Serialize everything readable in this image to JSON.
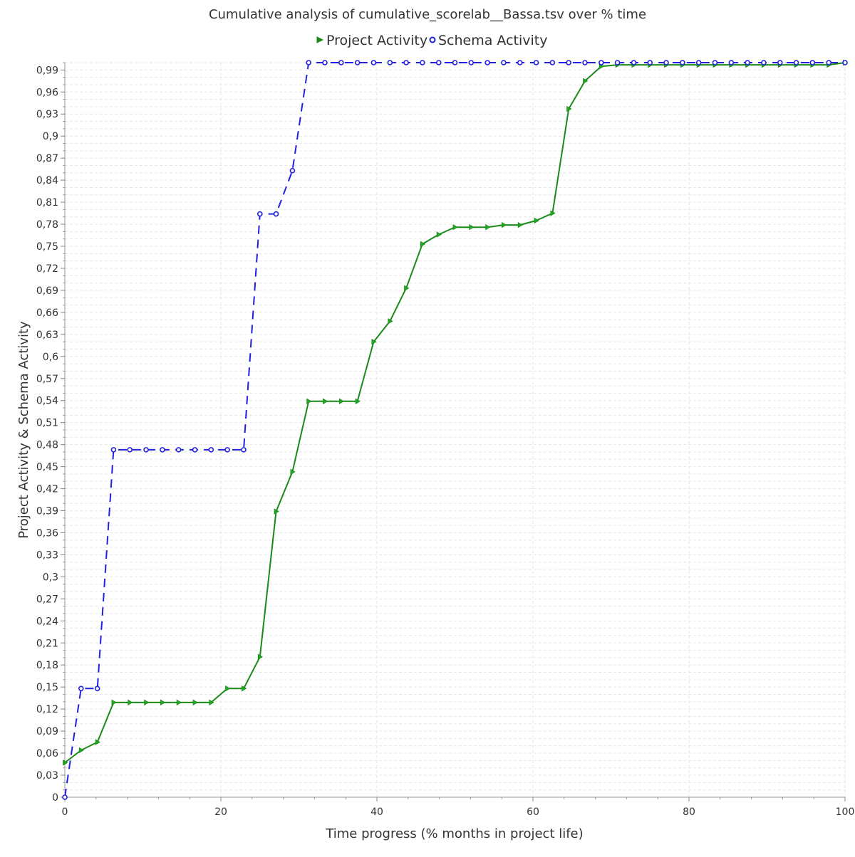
{
  "chart_data": {
    "type": "line",
    "title": "Cumulative analysis of cumulative_scorelab__Bassa.tsv over % time",
    "xlabel": "Time progress (% months in project life)",
    "ylabel": "Project Activity & Schema Activity",
    "xlim": [
      0,
      100
    ],
    "ylim": [
      0,
      1.0
    ],
    "x_ticks": [
      "0",
      "20",
      "40",
      "60",
      "80",
      "100"
    ],
    "x_tick_values": [
      0,
      20,
      40,
      60,
      80,
      100
    ],
    "y_ticks": [
      "0",
      "0,03",
      "0,06",
      "0,09",
      "0,12",
      "0,15",
      "0,18",
      "0,21",
      "0,24",
      "0,27",
      "0,3",
      "0,33",
      "0,36",
      "0,39",
      "0,42",
      "0,45",
      "0,48",
      "0,51",
      "0,54",
      "0,57",
      "0,6",
      "0,63",
      "0,66",
      "0,69",
      "0,72",
      "0,75",
      "0,78",
      "0,81",
      "0,84",
      "0,87",
      "0,9",
      "0,93",
      "0,96",
      "0,99"
    ],
    "y_tick_values": [
      0,
      0.03,
      0.06,
      0.09,
      0.12,
      0.15,
      0.18,
      0.21,
      0.24,
      0.27,
      0.3,
      0.33,
      0.36,
      0.39,
      0.42,
      0.45,
      0.48,
      0.51,
      0.54,
      0.57,
      0.6,
      0.63,
      0.66,
      0.69,
      0.72,
      0.75,
      0.78,
      0.81,
      0.84,
      0.87,
      0.9,
      0.93,
      0.96,
      0.99
    ],
    "grid": true,
    "legend_position": "top-center",
    "series": [
      {
        "name": "Project Activity",
        "color": "#1a8a1a",
        "marker": "triangle-right",
        "dash": "solid",
        "x": [
          0,
          2.08,
          4.17,
          6.25,
          8.33,
          10.42,
          12.5,
          14.58,
          16.67,
          18.75,
          20.83,
          22.92,
          25.0,
          27.08,
          29.17,
          31.25,
          33.33,
          35.42,
          37.5,
          39.58,
          41.67,
          43.75,
          45.83,
          47.92,
          50.0,
          52.08,
          54.17,
          56.25,
          58.33,
          60.42,
          62.5,
          64.58,
          66.67,
          68.75,
          70.83,
          72.92,
          75.0,
          77.08,
          79.17,
          81.25,
          83.33,
          85.42,
          87.5,
          89.58,
          91.67,
          93.75,
          95.83,
          97.92,
          100
        ],
        "values": [
          0.047,
          0.064,
          0.075,
          0.129,
          0.129,
          0.129,
          0.129,
          0.129,
          0.129,
          0.129,
          0.148,
          0.148,
          0.191,
          0.389,
          0.443,
          0.539,
          0.539,
          0.539,
          0.539,
          0.62,
          0.648,
          0.693,
          0.753,
          0.766,
          0.776,
          0.776,
          0.776,
          0.779,
          0.779,
          0.785,
          0.795,
          0.937,
          0.975,
          0.995,
          0.997,
          0.997,
          0.997,
          0.997,
          0.997,
          0.997,
          0.997,
          0.997,
          0.997,
          0.997,
          0.997,
          0.997,
          0.997,
          0.997,
          1.0
        ]
      },
      {
        "name": "Schema Activity",
        "color": "#2020e0",
        "marker": "circle",
        "dash": "dashed",
        "x": [
          0,
          2.08,
          4.17,
          6.25,
          8.33,
          10.42,
          12.5,
          14.58,
          16.67,
          18.75,
          20.83,
          22.92,
          25.0,
          27.08,
          29.17,
          31.25,
          33.33,
          35.42,
          37.5,
          39.58,
          41.67,
          43.75,
          45.83,
          47.92,
          50.0,
          52.08,
          54.17,
          56.25,
          58.33,
          60.42,
          62.5,
          64.58,
          66.67,
          68.75,
          70.83,
          72.92,
          75.0,
          77.08,
          79.17,
          81.25,
          83.33,
          85.42,
          87.5,
          89.58,
          91.67,
          93.75,
          95.83,
          97.92,
          100
        ],
        "values": [
          0.0,
          0.148,
          0.148,
          0.473,
          0.473,
          0.473,
          0.473,
          0.473,
          0.473,
          0.473,
          0.473,
          0.473,
          0.794,
          0.794,
          0.853,
          1.0,
          1.0,
          1.0,
          1.0,
          1.0,
          1.0,
          1.0,
          1.0,
          1.0,
          1.0,
          1.0,
          1.0,
          1.0,
          1.0,
          1.0,
          1.0,
          1.0,
          1.0,
          1.0,
          1.0,
          1.0,
          1.0,
          1.0,
          1.0,
          1.0,
          1.0,
          1.0,
          1.0,
          1.0,
          1.0,
          1.0,
          1.0,
          1.0,
          1.0
        ]
      }
    ]
  }
}
